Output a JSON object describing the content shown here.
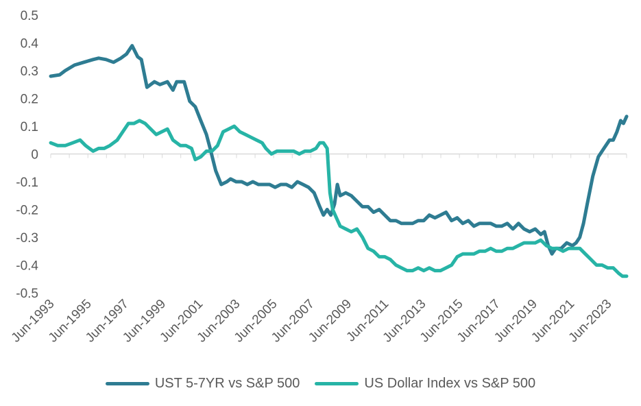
{
  "chart_data": {
    "type": "line",
    "title": "",
    "xlabel": "",
    "ylabel": "",
    "ylim": [
      -0.5,
      0.5
    ],
    "y_ticks": [
      "0.5",
      "0.4",
      "0.3",
      "0.2",
      "0.1",
      "0",
      "-0.1",
      "-0.2",
      "-0.3",
      "-0.4",
      "-0.5"
    ],
    "x_ticks": [
      "Jun-1993",
      "Jun-1995",
      "Jun-1997",
      "Jun-1999",
      "Jun-2001",
      "Jun-2003",
      "Jun-2005",
      "Jun-2007",
      "Jun-2009",
      "Jun-2011",
      "Jun-2013",
      "Jun-2015",
      "Jun-2017",
      "Jun-2019",
      "Jun-2021",
      "Jun-2023"
    ],
    "xlim": [
      1993.42,
      2024.42
    ],
    "grid": false,
    "legend_position": "bottom",
    "series": [
      {
        "name": "UST 5-7YR vs S&P 500",
        "color": "#2e7c92",
        "x": [
          1993.42,
          1993.9,
          1994.2,
          1994.7,
          1995.2,
          1995.7,
          1996.0,
          1996.4,
          1996.8,
          1997.2,
          1997.5,
          1997.8,
          1998.1,
          1998.3,
          1998.6,
          1999.0,
          1999.3,
          1999.7,
          2000.0,
          2000.2,
          2000.6,
          2000.9,
          2001.2,
          2001.5,
          2001.8,
          2002.0,
          2002.3,
          2002.6,
          2002.9,
          2003.1,
          2003.4,
          2003.7,
          2004.0,
          2004.3,
          2004.6,
          2004.9,
          2005.2,
          2005.5,
          2005.8,
          2006.1,
          2006.4,
          2006.7,
          2007.0,
          2007.3,
          2007.6,
          2007.9,
          2008.1,
          2008.3,
          2008.5,
          2008.7,
          2008.85,
          2009.0,
          2009.3,
          2009.6,
          2009.9,
          2010.2,
          2010.5,
          2010.8,
          2011.1,
          2011.4,
          2011.7,
          2012.0,
          2012.3,
          2012.6,
          2012.9,
          2013.2,
          2013.5,
          2013.8,
          2014.1,
          2014.4,
          2014.7,
          2015.0,
          2015.3,
          2015.6,
          2015.9,
          2016.2,
          2016.5,
          2016.8,
          2017.1,
          2017.4,
          2017.7,
          2018.0,
          2018.3,
          2018.6,
          2018.9,
          2019.2,
          2019.5,
          2019.8,
          2020.0,
          2020.2,
          2020.4,
          2020.6,
          2020.9,
          2021.2,
          2021.5,
          2021.7,
          2021.9,
          2022.1,
          2022.3,
          2022.6,
          2022.9,
          2023.2,
          2023.5,
          2023.7,
          2023.9,
          2024.1,
          2024.25,
          2024.42
        ],
        "values": [
          0.28,
          0.285,
          0.3,
          0.32,
          0.33,
          0.34,
          0.345,
          0.34,
          0.33,
          0.345,
          0.36,
          0.39,
          0.35,
          0.34,
          0.24,
          0.26,
          0.25,
          0.26,
          0.23,
          0.26,
          0.26,
          0.19,
          0.17,
          0.12,
          0.07,
          0.02,
          -0.06,
          -0.11,
          -0.1,
          -0.09,
          -0.1,
          -0.1,
          -0.11,
          -0.1,
          -0.11,
          -0.11,
          -0.11,
          -0.12,
          -0.11,
          -0.11,
          -0.12,
          -0.1,
          -0.11,
          -0.12,
          -0.14,
          -0.19,
          -0.22,
          -0.2,
          -0.22,
          -0.18,
          -0.11,
          -0.15,
          -0.14,
          -0.15,
          -0.17,
          -0.19,
          -0.19,
          -0.21,
          -0.2,
          -0.22,
          -0.24,
          -0.24,
          -0.25,
          -0.25,
          -0.25,
          -0.24,
          -0.24,
          -0.22,
          -0.23,
          -0.22,
          -0.21,
          -0.24,
          -0.23,
          -0.25,
          -0.24,
          -0.26,
          -0.25,
          -0.25,
          -0.25,
          -0.26,
          -0.26,
          -0.25,
          -0.27,
          -0.25,
          -0.27,
          -0.28,
          -0.27,
          -0.29,
          -0.28,
          -0.33,
          -0.36,
          -0.34,
          -0.34,
          -0.32,
          -0.33,
          -0.32,
          -0.3,
          -0.25,
          -0.18,
          -0.08,
          -0.01,
          0.02,
          0.05,
          0.05,
          0.08,
          0.12,
          0.11,
          0.135
        ]
      },
      {
        "name": "US Dollar Index vs S&P 500",
        "color": "#27b4a6",
        "x": [
          1993.42,
          1993.8,
          1994.2,
          1994.6,
          1995.0,
          1995.3,
          1995.7,
          1996.0,
          1996.3,
          1996.6,
          1997.0,
          1997.3,
          1997.6,
          1997.9,
          1998.2,
          1998.5,
          1998.8,
          1999.1,
          1999.4,
          1999.7,
          2000.0,
          2000.4,
          2000.7,
          2001.0,
          2001.2,
          2001.5,
          2001.8,
          2002.1,
          2002.4,
          2002.7,
          2003.0,
          2003.3,
          2003.6,
          2003.9,
          2004.2,
          2004.5,
          2004.8,
          2005.0,
          2005.3,
          2005.6,
          2005.9,
          2006.2,
          2006.5,
          2006.8,
          2007.1,
          2007.4,
          2007.7,
          2007.9,
          2008.1,
          2008.3,
          2008.45,
          2008.6,
          2008.8,
          2009.0,
          2009.3,
          2009.6,
          2009.9,
          2010.2,
          2010.5,
          2010.8,
          2011.1,
          2011.4,
          2011.7,
          2012.0,
          2012.3,
          2012.6,
          2012.9,
          2013.2,
          2013.5,
          2013.8,
          2014.1,
          2014.4,
          2014.7,
          2015.0,
          2015.3,
          2015.6,
          2015.9,
          2016.2,
          2016.5,
          2016.8,
          2017.1,
          2017.4,
          2017.7,
          2018.0,
          2018.3,
          2018.6,
          2018.9,
          2019.2,
          2019.5,
          2019.8,
          2020.1,
          2020.4,
          2020.7,
          2021.0,
          2021.3,
          2021.6,
          2021.9,
          2022.2,
          2022.5,
          2022.8,
          2023.1,
          2023.4,
          2023.7,
          2024.0,
          2024.2,
          2024.42
        ],
        "values": [
          0.04,
          0.03,
          0.03,
          0.04,
          0.05,
          0.03,
          0.01,
          0.02,
          0.02,
          0.03,
          0.05,
          0.08,
          0.11,
          0.11,
          0.12,
          0.11,
          0.09,
          0.07,
          0.08,
          0.09,
          0.05,
          0.03,
          0.03,
          0.02,
          -0.02,
          -0.01,
          0.01,
          0.01,
          0.03,
          0.08,
          0.09,
          0.1,
          0.08,
          0.07,
          0.06,
          0.05,
          0.04,
          0.02,
          0.0,
          0.01,
          0.01,
          0.01,
          0.01,
          0.0,
          0.01,
          0.01,
          0.02,
          0.04,
          0.04,
          0.02,
          -0.14,
          -0.2,
          -0.23,
          -0.26,
          -0.27,
          -0.28,
          -0.27,
          -0.3,
          -0.34,
          -0.35,
          -0.37,
          -0.37,
          -0.38,
          -0.4,
          -0.41,
          -0.42,
          -0.42,
          -0.41,
          -0.42,
          -0.41,
          -0.42,
          -0.42,
          -0.41,
          -0.4,
          -0.37,
          -0.36,
          -0.36,
          -0.36,
          -0.35,
          -0.35,
          -0.34,
          -0.35,
          -0.35,
          -0.34,
          -0.34,
          -0.33,
          -0.32,
          -0.32,
          -0.32,
          -0.31,
          -0.33,
          -0.34,
          -0.34,
          -0.35,
          -0.34,
          -0.34,
          -0.34,
          -0.36,
          -0.38,
          -0.4,
          -0.4,
          -0.41,
          -0.41,
          -0.43,
          -0.44,
          -0.44
        ]
      }
    ]
  }
}
